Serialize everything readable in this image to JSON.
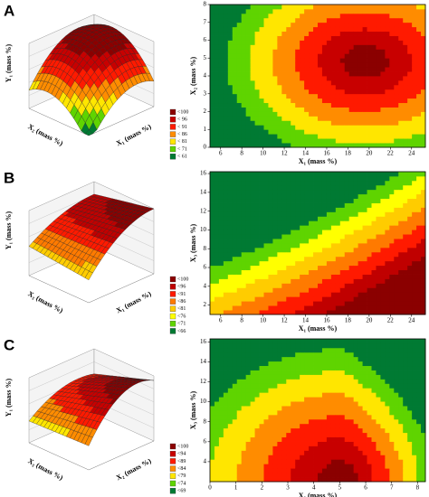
{
  "chart_data": [
    {
      "type": "contour",
      "panel": "A",
      "surface_axis_labels": [
        "Y₁ (mass %)",
        "X₂ (mass %)",
        "X₁ (mass %)"
      ],
      "legend_labels": [
        "<100",
        "< 96",
        "< 91",
        "< 86",
        "< 81",
        "< 71",
        "< 61"
      ],
      "colors": [
        "#8b0000",
        "#c80000",
        "#ff1a00",
        "#ff8c00",
        "#ffe600",
        "#5fd400",
        "#007a33"
      ],
      "xlabel": "X₁ (mass %)",
      "ylabel": "X₂ (mass %)",
      "xlim": [
        5,
        25.3
      ],
      "ylim": [
        0,
        8
      ],
      "xticks": [
        6,
        8,
        10,
        12,
        14,
        16,
        18,
        20,
        22,
        24
      ],
      "yticks": [
        0,
        1,
        2,
        3,
        4,
        5,
        6,
        7,
        8
      ]
    },
    {
      "type": "contour",
      "panel": "B",
      "surface_axis_labels": [
        "Y₁ (mass %)",
        "X₃ (mass %)",
        "X₁ (mass %)"
      ],
      "legend_labels": [
        "<100",
        "<96",
        "<91",
        "<86",
        "<81",
        "<76",
        "<71",
        "<66"
      ],
      "colors": [
        "#8b0000",
        "#c00000",
        "#ff1a00",
        "#ff7a00",
        "#ffcc00",
        "#ffff00",
        "#5fd400",
        "#007a33"
      ],
      "xlabel": "X₁ (mass %)",
      "ylabel": "X₃ (mass %)",
      "xlim": [
        5,
        25.3
      ],
      "ylim": [
        1,
        16.2
      ],
      "xticks": [
        6,
        8,
        10,
        12,
        14,
        16,
        18,
        20,
        22,
        24
      ],
      "yticks": [
        2,
        4,
        6,
        8,
        10,
        12,
        14,
        16
      ]
    },
    {
      "type": "contour",
      "panel": "C",
      "surface_axis_labels": [
        "Y₁ (mass %)",
        "X₃ (mass %)",
        "X₂ (mass %)"
      ],
      "legend_labels": [
        "<100",
        "<94",
        "<89",
        "<84",
        "<79",
        "<74",
        "<69"
      ],
      "colors": [
        "#8b0000",
        "#c80000",
        "#ff1a00",
        "#ff8c00",
        "#ffe600",
        "#5fd400",
        "#007a33"
      ],
      "xlabel": "X₂ (mass %)",
      "ylabel": "X₃ (mass %)",
      "xlim": [
        0,
        8.3
      ],
      "ylim": [
        2,
        16.3
      ],
      "xticks": [
        0,
        1,
        2,
        3,
        4,
        5,
        6,
        7,
        8
      ],
      "yticks": [
        4,
        6,
        8,
        10,
        12,
        14,
        16
      ]
    }
  ]
}
